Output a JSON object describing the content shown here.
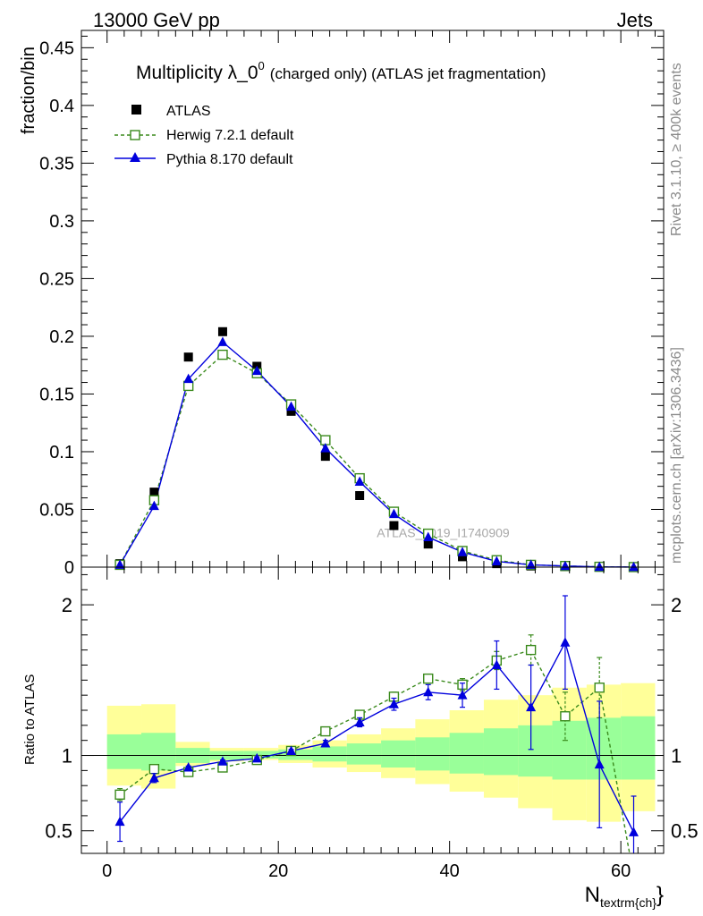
{
  "header": {
    "left": "13000 GeV pp",
    "right": "Jets"
  },
  "side_labels": {
    "rivet": "Rivet 3.1.10, ≥ 400k events",
    "mcplots": "mcplots.cern.ch [arXiv:1306.3436]"
  },
  "colors": {
    "atlas": "#000000",
    "herwig": "#3a8a1c",
    "pythia": "#0000dd",
    "band_inner": "#99ff99",
    "band_outer": "#ffff99"
  },
  "chart_data": [
    {
      "type": "scatter",
      "title_main": "Multiplicity λ_0",
      "title_sup": "0",
      "title_rest": "(charged only) (ATLAS jet fragmentation)",
      "ylabel": "fraction/bin",
      "xlabel_main": "N",
      "xlabel_sub": "textrm{ch}",
      "xlabel_end": "}",
      "watermark": "ATLAS_2019_I1740909",
      "xlim": [
        -3,
        65
      ],
      "ylim": [
        0,
        0.465
      ],
      "y_ticks": [
        "0",
        "0.05",
        "0.1",
        "0.15",
        "0.2",
        "0.25",
        "0.3",
        "0.35",
        "0.4",
        "0.45"
      ],
      "legend_position": "top-left",
      "x": [
        1.5,
        5.5,
        9.5,
        13.5,
        17.5,
        21.5,
        25.5,
        29.5,
        33.5,
        37.5,
        41.5,
        45.5,
        49.5,
        53.5,
        57.5,
        61.5
      ],
      "series": [
        {
          "name": "ATLAS",
          "marker": "filled-square",
          "values": [
            0.003,
            0.065,
            0.182,
            0.204,
            0.174,
            0.135,
            0.096,
            0.062,
            0.036,
            0.02,
            0.009,
            0.003,
            0.001,
            0.0005,
            0.0002,
            0.0002
          ]
        },
        {
          "name": "Herwig 7.2.1 default",
          "marker": "open-square",
          "values": [
            0.002,
            0.058,
            0.157,
            0.184,
            0.168,
            0.141,
            0.11,
            0.077,
            0.048,
            0.029,
            0.014,
            0.006,
            0.002,
            0.001,
            0.0003,
            5e-05
          ]
        },
        {
          "name": "Pythia 8.170 default",
          "marker": "filled-triangle",
          "values": [
            0.002,
            0.053,
            0.163,
            0.195,
            0.17,
            0.139,
            0.103,
            0.074,
            0.046,
            0.026,
            0.013,
            0.005,
            0.002,
            0.001,
            0.0002,
            0.0001
          ]
        }
      ]
    },
    {
      "type": "line",
      "ylabel": "Ratio to ATLAS",
      "xlim": [
        -3,
        65
      ],
      "ylim": [
        0.35,
        2.25
      ],
      "x_ticks": [
        "0",
        "20",
        "40",
        "60"
      ],
      "y_ticks": [
        "0.5",
        "1",
        "2"
      ],
      "x_edges": [
        0,
        4,
        8,
        12,
        16,
        20,
        24,
        28,
        32,
        36,
        40,
        44,
        48,
        52,
        56,
        60,
        64
      ],
      "band_inner": {
        "low": [
          0.91,
          0.9,
          0.95,
          0.97,
          0.98,
          0.97,
          0.96,
          0.94,
          0.92,
          0.9,
          0.88,
          0.87,
          0.86,
          0.84,
          0.84,
          0.84
        ],
        "high": [
          1.14,
          1.15,
          1.05,
          1.03,
          1.03,
          1.04,
          1.06,
          1.08,
          1.1,
          1.12,
          1.15,
          1.18,
          1.2,
          1.23,
          1.25,
          1.26
        ]
      },
      "band_outer": {
        "low": [
          0.8,
          0.78,
          0.93,
          0.96,
          0.97,
          0.95,
          0.92,
          0.89,
          0.85,
          0.81,
          0.76,
          0.72,
          0.65,
          0.57,
          0.56,
          0.63
        ]
      },
      "band_outer_high": [
        1.33,
        1.34,
        1.09,
        1.05,
        1.05,
        1.07,
        1.1,
        1.14,
        1.18,
        1.24,
        1.3,
        1.37,
        1.4,
        1.45,
        1.47,
        1.48
      ],
      "series": [
        {
          "name": "Herwig 7.2.1 default",
          "values": [
            0.74,
            0.91,
            0.89,
            0.92,
            0.97,
            1.03,
            1.16,
            1.27,
            1.39,
            1.51,
            1.47,
            1.63,
            1.7,
            1.26,
            1.45,
            0.2
          ],
          "err": [
            0.04,
            0.02,
            0.01,
            0.01,
            0.01,
            0.01,
            0.02,
            0.02,
            0.03,
            0.03,
            0.04,
            0.06,
            0.1,
            0.16,
            0.2,
            0.0
          ]
        },
        {
          "name": "Pythia 8.170 default",
          "values": [
            0.56,
            0.85,
            0.92,
            0.96,
            0.98,
            1.03,
            1.08,
            1.22,
            1.34,
            1.42,
            1.4,
            1.6,
            1.32,
            1.75,
            0.94,
            0.49
          ],
          "err": [
            0.13,
            0.03,
            0.01,
            0.01,
            0.01,
            0.01,
            0.02,
            0.03,
            0.04,
            0.05,
            0.08,
            0.16,
            0.28,
            0.31,
            0.42,
            0.24
          ]
        }
      ]
    }
  ]
}
